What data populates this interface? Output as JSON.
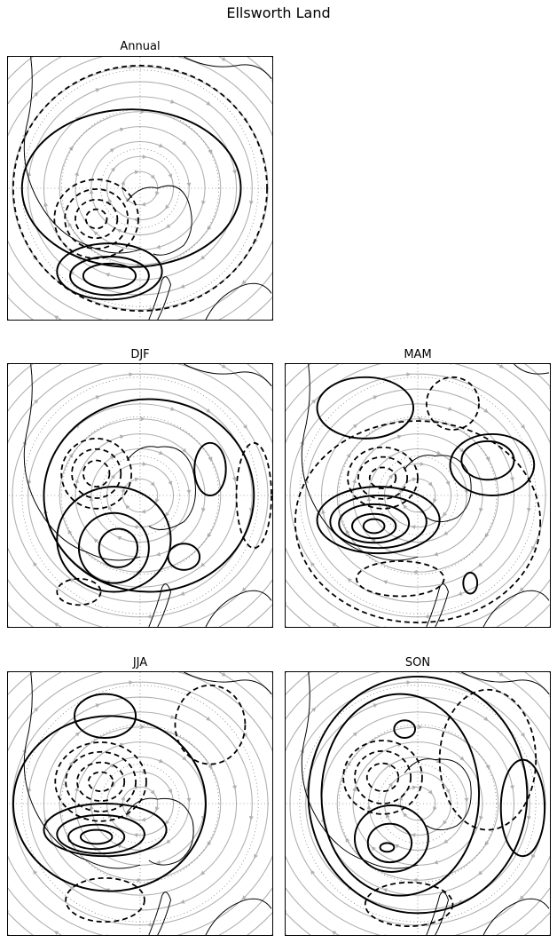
{
  "figure": {
    "title": "Ellsworth Land"
  },
  "panels": [
    {
      "id": "annual",
      "title": "Annual"
    },
    {
      "id": "djf",
      "title": "DJF"
    },
    {
      "id": "mam",
      "title": "MAM"
    },
    {
      "id": "jja",
      "title": "JJA"
    },
    {
      "id": "son",
      "title": "SON"
    }
  ],
  "colors": {
    "streamline": "#b0b0b0",
    "contour": "#000000",
    "coast": "#000000",
    "graticule": "#555555"
  }
}
